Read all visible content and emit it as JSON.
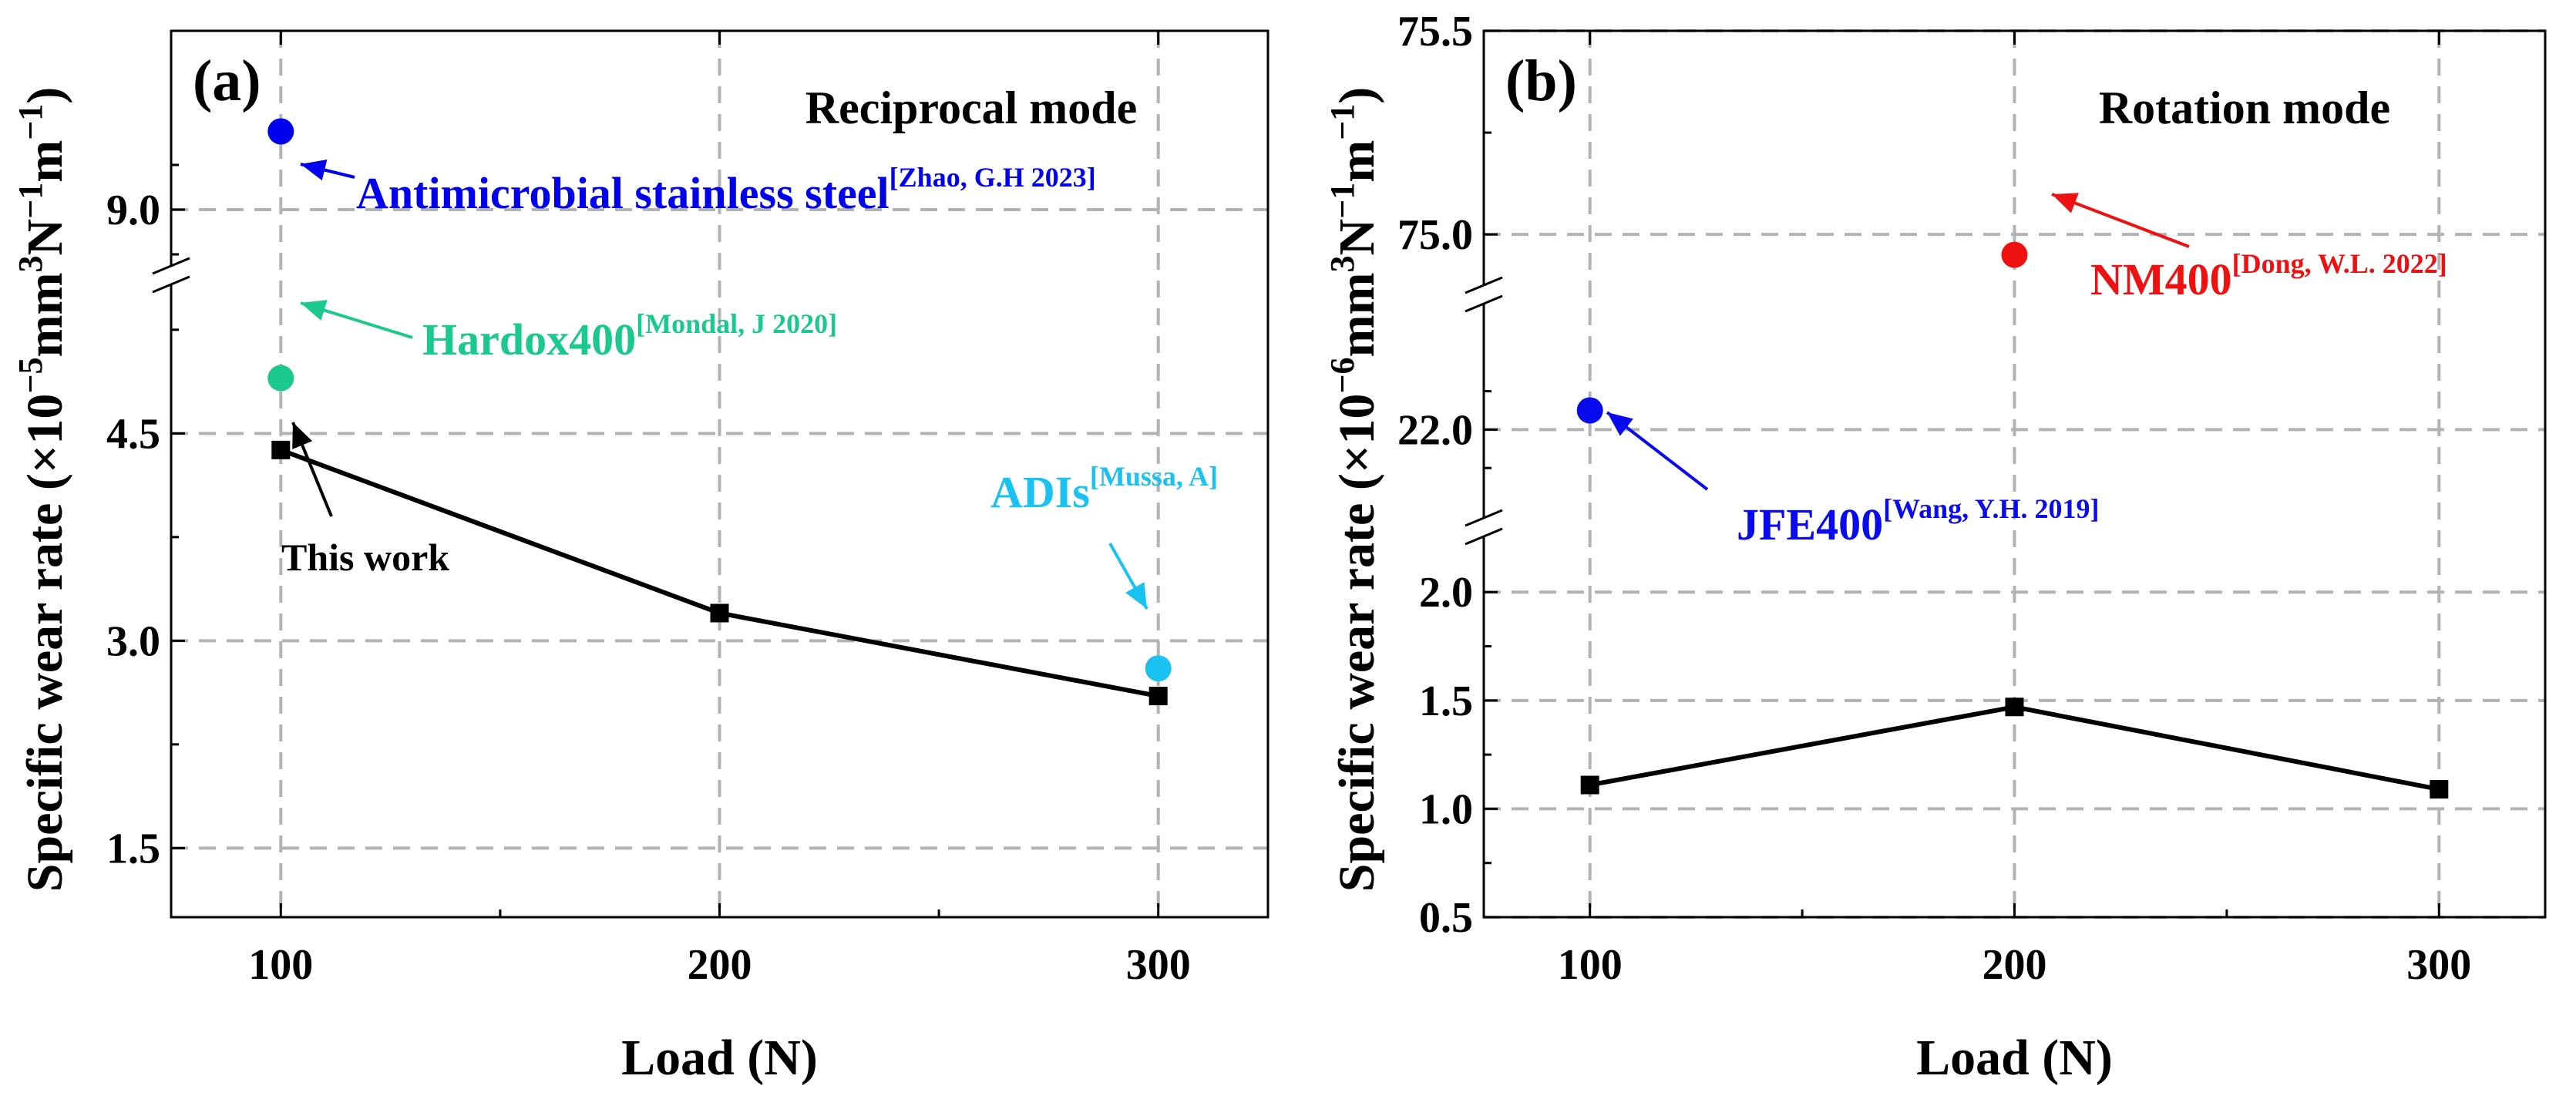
{
  "chart_data": [
    {
      "panel_label": "(a)",
      "mode": "Reciprocal mode",
      "type": "line",
      "xlabel": "Load (N)",
      "ylabel": {
        "main": "Specific wear rate (×10",
        "exp": "−5",
        "units": "mm",
        "units_exp1": "3",
        "units_mid": "N",
        "units_exp2": "−1",
        "units_end": "m",
        "units_exp3": "−1",
        "close": ")"
      },
      "x_ticks": [
        "100",
        "200",
        "300"
      ],
      "xlim": [
        75,
        325
      ],
      "y_axis_broken": true,
      "y_segments": [
        {
          "range": [
            1.0,
            5.5
          ],
          "ticks": [
            "1.5",
            "3.0",
            "4.5"
          ]
        },
        {
          "range": [
            8.8,
            9.8
          ],
          "ticks": [
            "9.0"
          ]
        }
      ],
      "grid": true,
      "series": [
        {
          "name": "This work",
          "x": [
            100,
            200,
            300
          ],
          "y": [
            4.38,
            3.2,
            2.6
          ],
          "color": "#000000",
          "marker": "square",
          "line": true
        }
      ],
      "references": [
        {
          "label": "Antimicrobial stainless steel",
          "citation": "[Zhao, G.H 2023]",
          "x": 100,
          "y": 9.35,
          "color": "#0000EE"
        },
        {
          "label": "Hardox400",
          "citation": "[Mondal, J 2020]",
          "x": 100,
          "y": 4.9,
          "color": "#1BC98E"
        },
        {
          "label": "ADIs",
          "citation": "[Mussa, A]",
          "x": 300,
          "y": 2.8,
          "color": "#19C2F0"
        }
      ],
      "annotation": "This work"
    },
    {
      "panel_label": "(b)",
      "mode": "Rotation mode",
      "type": "line",
      "xlabel": "Load (N)",
      "ylabel": {
        "main": "Specific wear rate (×10",
        "exp": "−6",
        "units": "mm",
        "units_exp1": "3",
        "units_mid": "N",
        "units_exp2": "−1",
        "units_end": "m",
        "units_exp3": "−1",
        "close": ")"
      },
      "x_ticks": [
        "100",
        "200",
        "300"
      ],
      "xlim": [
        75,
        325
      ],
      "y_axis_broken": true,
      "y_segments": [
        {
          "range": [
            0.5,
            2.2
          ],
          "ticks": [
            "0.5",
            "1.0",
            "1.5",
            "2.0"
          ]
        },
        {
          "range": [
            21.8,
            22.3
          ],
          "ticks": [
            "22.0"
          ]
        },
        {
          "range": [
            74.9,
            75.5
          ],
          "ticks": [
            "75.0",
            "75.5"
          ]
        }
      ],
      "grid": true,
      "series": [
        {
          "name": "",
          "x": [
            100,
            200,
            300
          ],
          "y": [
            1.11,
            1.47,
            1.09
          ],
          "color": "#000000",
          "marker": "square",
          "line": true
        }
      ],
      "references": [
        {
          "label": "NM400",
          "citation": "[Dong, W.L. 2022]",
          "x": 200,
          "y": 74.95,
          "color": "#EE1111"
        },
        {
          "label": "JFE400",
          "citation": "[Wang, Y.H. 2019]",
          "x": 100,
          "y": 22.05,
          "color": "#0A0AEE"
        }
      ]
    }
  ]
}
